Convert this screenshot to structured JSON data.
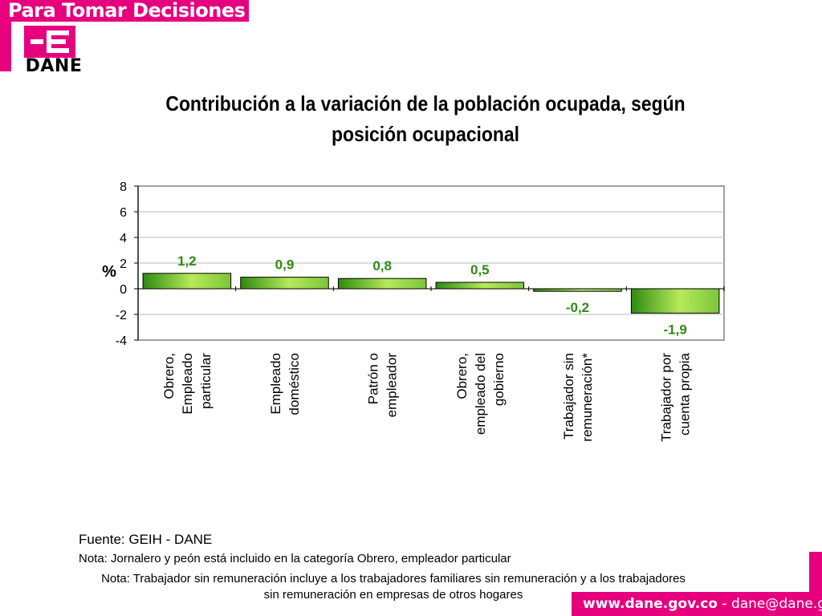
{
  "header": {
    "banner_text": "Para Tomar Decisiones",
    "logo_text": "DANE"
  },
  "colors": {
    "brand": "#e6007e",
    "bar_dark": "#2f8a12",
    "bar_light": "#b6ea5a",
    "label_green": "#2e8b12"
  },
  "chart_data": {
    "type": "bar",
    "title": "Contribución a la variación de la población ocupada, según posición ocupacional",
    "ylabel": "%",
    "ylim": [
      -4,
      8
    ],
    "yticks": [
      -4,
      -2,
      0,
      2,
      4,
      6,
      8
    ],
    "grid": true,
    "categories": [
      [
        "Obrero,",
        "Empleado",
        "particular"
      ],
      [
        "Empleado",
        "doméstico"
      ],
      [
        "Patrón o",
        "empleador"
      ],
      [
        "Obrero,",
        "empleado del",
        "gobierno"
      ],
      [
        "Trabajador sin",
        "remuneración*"
      ],
      [
        "Trabajador por",
        "cuenta propia"
      ]
    ],
    "values": [
      1.2,
      0.9,
      0.8,
      0.5,
      -0.2,
      -1.9
    ],
    "data_labels": [
      "1,2",
      "0,9",
      "0,8",
      "0,5",
      "-0,2",
      "-1,9"
    ]
  },
  "notes": {
    "source": "Fuente: GEIH - DANE",
    "note1": "Nota: Jornalero y peón está incluido en la categoría Obrero, empleador particular",
    "note2": "Nota: Trabajador sin remuneración incluye a los trabajadores familiares sin remuneración y a los trabajadores sin remuneración en empresas de otros hogares"
  },
  "footer": {
    "site": "www.dane.gov.co",
    "separator": " - ",
    "email": "dane@dane.gov.co"
  }
}
